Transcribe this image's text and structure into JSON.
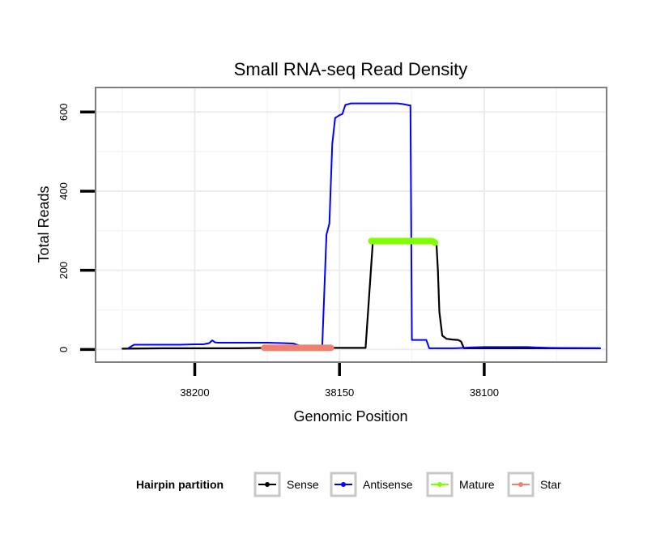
{
  "chart_data": {
    "type": "line",
    "title": "Small RNA-seq Read Density",
    "xlabel": "Genomic Position",
    "ylabel": "Total Reads",
    "x_reversed": true,
    "xlim": [
      38234,
      38058
    ],
    "ylim": [
      -30,
      660
    ],
    "x_ticks": [
      38200,
      38150,
      38100
    ],
    "x_tick_labels": [
      "38200",
      "38150",
      "38100"
    ],
    "y_ticks": [
      0,
      200,
      400,
      600
    ],
    "y_tick_labels": [
      "0",
      "200",
      "400",
      "600"
    ],
    "grid": true,
    "legend": {
      "title": "Hairpin partition",
      "position": "bottom",
      "entries": [
        "Sense",
        "Antisense",
        "Mature",
        "Star"
      ]
    },
    "series": [
      {
        "name": "Sense",
        "color": "#000000",
        "width": 2.2,
        "points": [
          [
            38225,
            2
          ],
          [
            38211,
            3
          ],
          [
            38200,
            3
          ],
          [
            38185,
            3
          ],
          [
            38175,
            4
          ],
          [
            38165,
            4
          ],
          [
            38150,
            4
          ],
          [
            38145,
            4
          ],
          [
            38141,
            4
          ],
          [
            38138.5,
            270
          ],
          [
            38137,
            274
          ],
          [
            38130,
            274
          ],
          [
            38122,
            274
          ],
          [
            38117,
            273
          ],
          [
            38116.5,
            268
          ],
          [
            38116,
            200
          ],
          [
            38115.5,
            95
          ],
          [
            38114.5,
            35
          ],
          [
            38113,
            27
          ],
          [
            38111,
            25
          ],
          [
            38109,
            24
          ],
          [
            38108,
            20
          ],
          [
            38107,
            3
          ],
          [
            38100,
            3
          ],
          [
            38060,
            3
          ]
        ]
      },
      {
        "name": "Antisense",
        "color": "#0000ff",
        "width": 2,
        "points": [
          [
            38223,
            3
          ],
          [
            38221,
            12
          ],
          [
            38215,
            12
          ],
          [
            38205,
            12
          ],
          [
            38200,
            13
          ],
          [
            38197,
            13
          ],
          [
            38195,
            16
          ],
          [
            38194,
            23
          ],
          [
            38193,
            18
          ],
          [
            38192,
            17
          ],
          [
            38185,
            17
          ],
          [
            38175,
            17
          ],
          [
            38170,
            16
          ],
          [
            38166,
            15
          ],
          [
            38163,
            8
          ],
          [
            38157,
            3
          ],
          [
            38156,
            3
          ],
          [
            38154.5,
            290
          ],
          [
            38153.5,
            318
          ],
          [
            38152.5,
            520
          ],
          [
            38151.5,
            585
          ],
          [
            38150,
            592
          ],
          [
            38149,
            595
          ],
          [
            38148,
            618
          ],
          [
            38146,
            622
          ],
          [
            38140,
            622
          ],
          [
            38135,
            622
          ],
          [
            38130,
            622
          ],
          [
            38128,
            620
          ],
          [
            38126,
            617
          ],
          [
            38125.5,
            617
          ],
          [
            38125,
            24
          ],
          [
            38122,
            24
          ],
          [
            38120,
            24
          ],
          [
            38119,
            3
          ],
          [
            38117,
            3
          ],
          [
            38115,
            3
          ],
          [
            38110,
            3
          ],
          [
            38107,
            4
          ],
          [
            38105,
            5
          ],
          [
            38100,
            6
          ],
          [
            38090,
            6
          ],
          [
            38085,
            6
          ],
          [
            38082,
            5
          ],
          [
            38077,
            4
          ],
          [
            38060,
            3
          ]
        ]
      },
      {
        "name": "Mature",
        "color": "#7fff00",
        "width": 8,
        "points": [
          [
            38139,
            274
          ],
          [
            38135,
            274
          ],
          [
            38130,
            274
          ],
          [
            38125,
            274
          ],
          [
            38120,
            274
          ],
          [
            38118,
            274
          ],
          [
            38117,
            270
          ]
        ]
      },
      {
        "name": "Star",
        "color": "#f08070",
        "width": 8,
        "points": [
          [
            38176,
            4
          ],
          [
            38170,
            4
          ],
          [
            38165,
            4
          ],
          [
            38160,
            4
          ],
          [
            38155,
            4
          ],
          [
            38153,
            4
          ]
        ]
      }
    ]
  }
}
